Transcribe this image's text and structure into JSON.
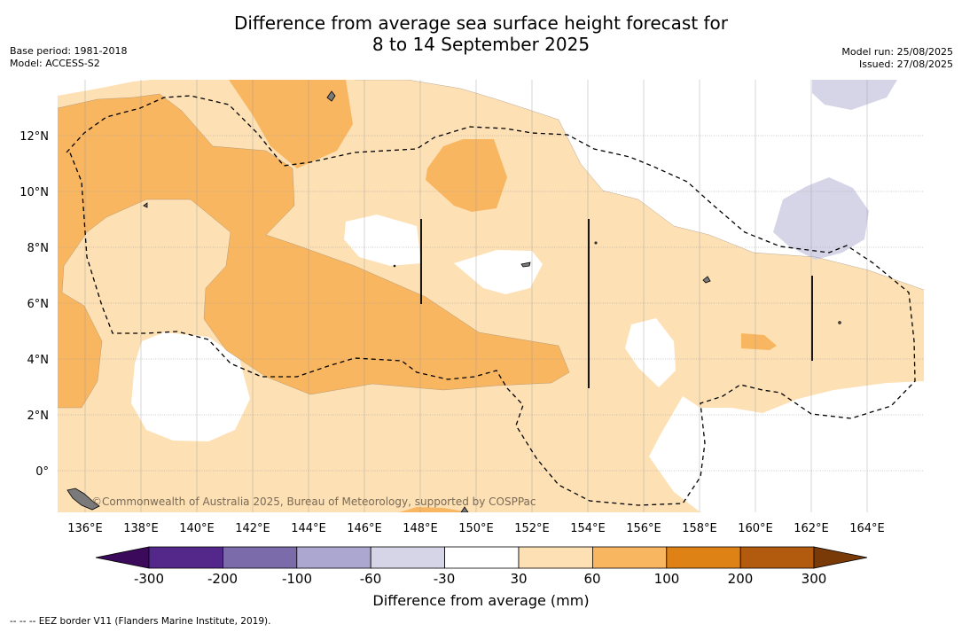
{
  "title_line1": "Difference from average sea surface height forecast for",
  "title_line2": "8 to 14 September 2025",
  "base_period": "Base period: 1981-2018",
  "model": "Model: ACCESS-S2",
  "model_run": "Model run: 25/08/2025",
  "issued": "Issued: 27/08/2025",
  "copyright": "©Commonwealth of Australia 2025, Bureau of Meteorology, supported by COSPPac",
  "footer_note": "--  --  -- EEZ border V11 (Flanders Marine Institute, 2019).",
  "lon_labels": [
    "136°E",
    "138°E",
    "140°E",
    "142°E",
    "144°E",
    "146°E",
    "148°E",
    "150°E",
    "152°E",
    "154°E",
    "156°E",
    "158°E",
    "160°E",
    "162°E",
    "164°E"
  ],
  "lat_labels": [
    "12°N",
    "10°N",
    "8°N",
    "6°N",
    "4°N",
    "2°N",
    "0°"
  ],
  "colorbar": {
    "title": "Difference from average (mm)",
    "ticks": [
      "-300",
      "-200",
      "-100",
      "-60",
      "-30",
      "30",
      "60",
      "100",
      "200",
      "300"
    ],
    "colors": [
      "#3b0a5a",
      "#53288a",
      "#7c6bab",
      "#aca7d0",
      "#d6d5e8",
      "#ffffff",
      "#fde0b4",
      "#f9b661",
      "#df8216",
      "#b25a0e",
      "#7a3a08"
    ]
  }
}
